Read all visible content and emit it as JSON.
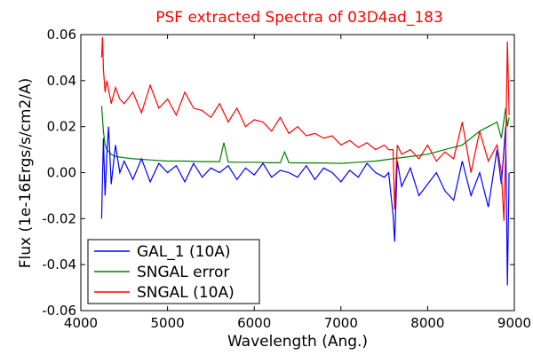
{
  "chart_data": {
    "type": "line",
    "title": "PSF extracted Spectra of 03D4ad_183",
    "xlabel": "Wavelength (Ang.)",
    "ylabel": "Flux (1e-16Ergs/s/cm2/A)",
    "xlim": [
      4000,
      9000
    ],
    "ylim": [
      -0.06,
      0.06
    ],
    "xticks": [
      4000,
      5000,
      6000,
      7000,
      8000,
      9000
    ],
    "xtick_labels": [
      "4000",
      "5000",
      "6000",
      "7000",
      "8000",
      "9000"
    ],
    "yticks": [
      -0.06,
      -0.04,
      -0.02,
      0.0,
      0.02,
      0.04,
      0.06
    ],
    "ytick_labels": [
      "-0.06",
      "-0.04",
      "-0.02",
      "0.00",
      "0.02",
      "0.04",
      "0.06"
    ],
    "grid": false,
    "legend_position": "lower-left",
    "series": [
      {
        "name": "GAL_1 (10A)",
        "color": "#0000ff",
        "x": [
          4240,
          4260,
          4280,
          4300,
          4320,
          4350,
          4400,
          4450,
          4500,
          4600,
          4700,
          4800,
          4900,
          5000,
          5100,
          5200,
          5300,
          5400,
          5500,
          5600,
          5700,
          5800,
          5900,
          6000,
          6100,
          6200,
          6300,
          6400,
          6500,
          6600,
          6700,
          6800,
          6900,
          7000,
          7100,
          7200,
          7300,
          7400,
          7500,
          7550,
          7600,
          7620,
          7650,
          7700,
          7800,
          7900,
          8000,
          8100,
          8200,
          8300,
          8400,
          8500,
          8600,
          8700,
          8800,
          8850,
          8900,
          8920,
          8940
        ],
        "y": [
          -0.02,
          0.015,
          -0.01,
          0.008,
          0.02,
          -0.005,
          0.012,
          0.0,
          0.005,
          -0.003,
          0.006,
          -0.004,
          0.004,
          0.0,
          0.003,
          -0.004,
          0.004,
          -0.002,
          0.002,
          0.0,
          0.003,
          -0.003,
          0.002,
          -0.001,
          0.004,
          -0.002,
          0.001,
          0.0,
          -0.002,
          0.003,
          -0.003,
          0.002,
          0.0,
          -0.004,
          0.001,
          -0.002,
          0.004,
          0.0,
          -0.002,
          0.0,
          -0.018,
          -0.03,
          0.005,
          -0.006,
          0.002,
          -0.01,
          -0.005,
          0.0,
          -0.008,
          -0.012,
          0.005,
          -0.01,
          0.0,
          -0.015,
          0.01,
          -0.005,
          0.02,
          -0.049,
          0.0
        ]
      },
      {
        "name": "SNGAL error",
        "color": "#008000",
        "x": [
          4240,
          4260,
          4280,
          4300,
          4350,
          4400,
          4500,
          4600,
          4800,
          5000,
          5200,
          5400,
          5600,
          5650,
          5700,
          5800,
          6000,
          6200,
          6300,
          6350,
          6400,
          6600,
          6800,
          7000,
          7200,
          7400,
          7600,
          7800,
          8000,
          8200,
          8400,
          8500,
          8600,
          8700,
          8800,
          8850,
          8900,
          8920,
          8940
        ],
        "y": [
          0.029,
          0.018,
          0.012,
          0.01,
          0.008,
          0.007,
          0.0065,
          0.006,
          0.0055,
          0.005,
          0.005,
          0.0048,
          0.0048,
          0.013,
          0.0046,
          0.0045,
          0.0045,
          0.0043,
          0.0043,
          0.009,
          0.0043,
          0.0042,
          0.0042,
          0.004,
          0.0045,
          0.005,
          0.006,
          0.007,
          0.008,
          0.01,
          0.012,
          0.015,
          0.018,
          0.02,
          0.022,
          0.015,
          0.028,
          0.02,
          0.024
        ]
      },
      {
        "name": "SNGAL (10A)",
        "color": "#ff0000",
        "x": [
          4240,
          4250,
          4260,
          4280,
          4300,
          4350,
          4400,
          4450,
          4500,
          4600,
          4700,
          4800,
          4900,
          5000,
          5100,
          5200,
          5300,
          5400,
          5500,
          5600,
          5700,
          5800,
          5900,
          6000,
          6100,
          6200,
          6300,
          6400,
          6500,
          6600,
          6700,
          6800,
          6900,
          7000,
          7100,
          7200,
          7300,
          7400,
          7500,
          7550,
          7600,
          7620,
          7650,
          7700,
          7800,
          7900,
          8000,
          8100,
          8200,
          8300,
          8400,
          8500,
          8600,
          8700,
          8800,
          8850,
          8880,
          8900,
          8920,
          8940
        ],
        "y": [
          0.05,
          0.059,
          0.045,
          0.035,
          0.04,
          0.03,
          0.037,
          0.032,
          0.03,
          0.035,
          0.026,
          0.038,
          0.028,
          0.032,
          0.025,
          0.035,
          0.028,
          0.027,
          0.024,
          0.03,
          0.022,
          0.028,
          0.02,
          0.023,
          0.022,
          0.018,
          0.024,
          0.017,
          0.02,
          0.016,
          0.017,
          0.015,
          0.016,
          0.012,
          0.014,
          0.011,
          0.013,
          0.01,
          0.012,
          0.01,
          0.01,
          -0.016,
          0.012,
          0.008,
          0.01,
          0.006,
          0.012,
          0.005,
          0.009,
          0.006,
          0.022,
          0.0,
          0.018,
          0.005,
          0.012,
          0.0,
          -0.021,
          0.01,
          0.057,
          0.025
        ]
      }
    ]
  }
}
